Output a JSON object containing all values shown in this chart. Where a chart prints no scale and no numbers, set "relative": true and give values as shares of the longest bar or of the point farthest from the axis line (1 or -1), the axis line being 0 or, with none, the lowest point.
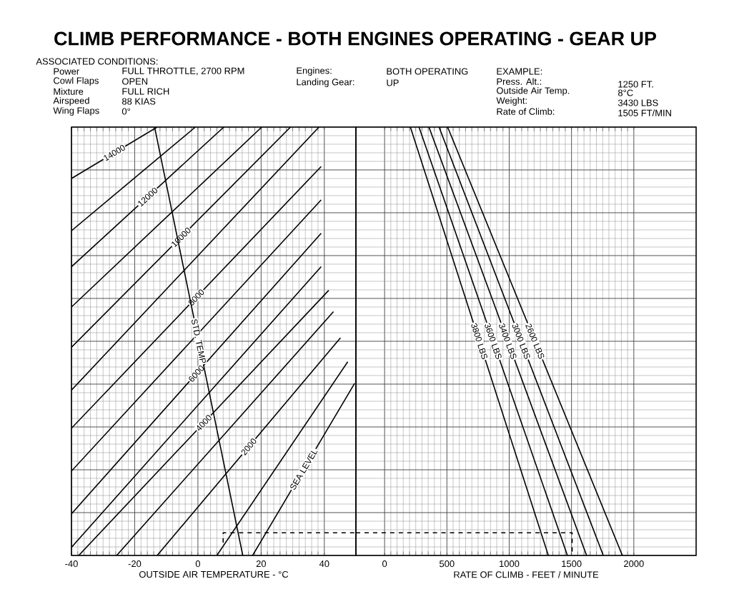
{
  "chart_data": [
    {
      "type": "line",
      "title": "CLIMB PERFORMANCE - BOTH ENGINES OPERATING - GEAR UP",
      "xlabel": "OUTSIDE AIR TEMPERATURE - °C",
      "relative": true,
      "xlim": [
        -40,
        50
      ],
      "xticks": [
        -40,
        -20,
        0,
        20,
        40
      ],
      "grid": true,
      "marker": "none",
      "line_style": "solid",
      "annotations": [
        "ASSOCIATED CONDITIONS:",
        "Power",
        "FULL THROTTLE, 2700 RPM",
        "Cowl Flaps",
        "OPEN",
        "Mixture",
        "FULL RICH",
        "Airspeed",
        "88 KIAS",
        "Wing Flaps",
        "0°",
        "Engines:",
        "BOTH OPERATING",
        "Landing Gear:",
        "UP",
        "EXAMPLE:",
        "Press. Alt.:",
        "1250 FT.",
        "Outside Air Temp.",
        "8°C",
        "Weight:",
        "3430 LBS",
        "Rate of Climb:",
        "1505 FT/MIN"
      ],
      "series": [
        {
          "name": "14000",
          "color": "#000000",
          "x": [
            -40,
            -12.9
          ],
          "values": [
            0.88,
            1
          ]
        },
        {
          "color": "#000000",
          "x": [
            -40,
            -0.8
          ],
          "values": [
            0.758,
            1
          ]
        },
        {
          "name": "12000",
          "color": "#000000",
          "x": [
            -40,
            8.2
          ],
          "values": [
            0.674,
            1
          ]
        },
        {
          "color": "#000000",
          "x": [
            -40,
            20.2
          ],
          "values": [
            0.58,
            1
          ]
        },
        {
          "name": "10000",
          "color": "#000000",
          "x": [
            -40,
            29.3
          ],
          "values": [
            0.486,
            1
          ]
        },
        {
          "color": "#000000",
          "x": [
            -40,
            38.3
          ],
          "values": [
            0.386,
            1
          ]
        },
        {
          "name": "8000",
          "color": "#000000",
          "x": [
            -40,
            39
          ],
          "values": [
            0.297,
            0.908
          ]
        },
        {
          "color": "#000000",
          "x": [
            -40,
            39
          ],
          "values": [
            0.197,
            0.83
          ]
        },
        {
          "name": "6000",
          "color": "#000000",
          "x": [
            -40,
            39
          ],
          "values": [
            0.097,
            0.752
          ]
        },
        {
          "color": "#000000",
          "x": [
            -40,
            39
          ],
          "values": [
            0.019,
            0.674
          ]
        },
        {
          "name": "4000",
          "color": "#000000",
          "x": [
            -37.7,
            41.4
          ],
          "values": [
            0,
            0.619
          ]
        },
        {
          "color": "#000000",
          "x": [
            -25.7,
            42.9
          ],
          "values": [
            0,
            0.569
          ]
        },
        {
          "name": "2000",
          "color": "#000000",
          "x": [
            -12.9,
            45.1
          ],
          "values": [
            0,
            0.508
          ]
        },
        {
          "color": "#000000",
          "x": [
            6.0,
            47.4
          ],
          "values": [
            0,
            0.452
          ]
        },
        {
          "name": "SEA LEVEL",
          "color": "#000000",
          "x": [
            17.3,
            49.6
          ],
          "values": [
            0,
            0.402
          ]
        },
        {
          "name": "STD. TEMP",
          "color": "#000000",
          "x": [
            -13.7,
            14.2
          ],
          "values": [
            1,
            0
          ]
        },
        {
          "color": "#000000",
          "line_style": "dashed",
          "x": [
            8,
            8,
            50
          ],
          "values": [
            0.03,
            0.053,
            0.053
          ]
        }
      ]
    },
    {
      "type": "line",
      "xlabel": "RATE OF CLIMB - FEET / MINUTE",
      "relative": true,
      "xlim": [
        -230,
        2500
      ],
      "xticks": [
        0,
        500,
        1000,
        1500,
        2000
      ],
      "grid": true,
      "marker": "none",
      "line_style": "solid",
      "series": [
        {
          "name": "3800 LBS",
          "color": "#000000",
          "x": [
            1314,
            207
          ],
          "values": [
            0,
            1
          ]
        },
        {
          "name": "3600 LBS",
          "color": "#000000",
          "x": [
            1467,
            276
          ],
          "values": [
            0,
            1
          ]
        },
        {
          "name": "3400 LBS",
          "color": "#000000",
          "x": [
            1621,
            356
          ],
          "values": [
            0,
            1
          ]
        },
        {
          "name": "3000 LBS",
          "color": "#000000",
          "x": [
            1755,
            437
          ],
          "values": [
            0,
            1
          ]
        },
        {
          "name": "2600 LBS",
          "color": "#000000",
          "x": [
            1908,
            506
          ],
          "values": [
            0,
            1
          ]
        },
        {
          "color": "#000000",
          "line_style": "dashed",
          "x": [
            -230,
            1505,
            1505
          ],
          "values": [
            0.053,
            0.053,
            0
          ]
        }
      ]
    }
  ]
}
